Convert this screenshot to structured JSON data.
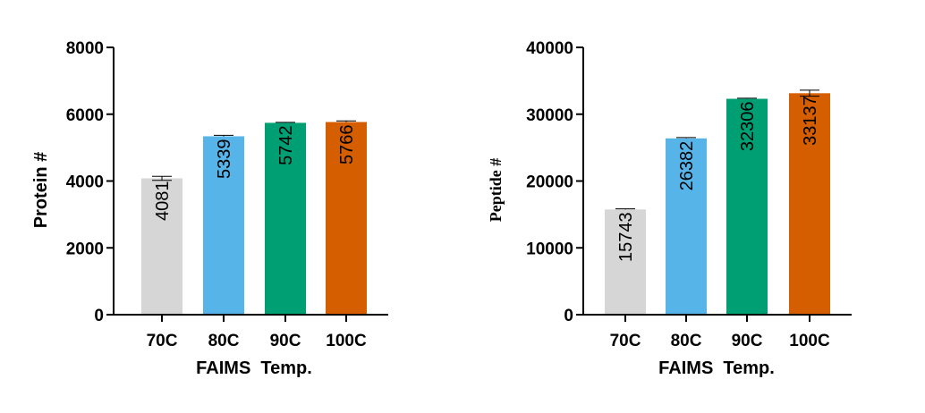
{
  "chart_data": [
    {
      "type": "bar",
      "categories": [
        "70C",
        "80C",
        "90C",
        "100C"
      ],
      "values": [
        4081,
        5339,
        5742,
        5766
      ],
      "errors": [
        60,
        30,
        15,
        35
      ],
      "data_labels": [
        "4081",
        "5339",
        "5742",
        "5766"
      ],
      "colors": [
        "#d6d6d6",
        "#56b4e9",
        "#009e73",
        "#d55e00"
      ],
      "xlabel": "FAIMS  Temp.",
      "ylabel": "Protein #",
      "ylim": [
        0,
        8000
      ],
      "yticks": [
        0,
        2000,
        4000,
        6000,
        8000
      ],
      "ytick_labels": [
        "0",
        "2000",
        "4000",
        "6000",
        "8000"
      ],
      "grid": false
    },
    {
      "type": "bar",
      "categories": [
        "70C",
        "80C",
        "90C",
        "100C"
      ],
      "values": [
        15743,
        26382,
        32306,
        33137
      ],
      "errors": [
        100,
        120,
        80,
        450
      ],
      "data_labels": [
        "15743",
        "26382",
        "32306",
        "33137"
      ],
      "colors": [
        "#d6d6d6",
        "#56b4e9",
        "#009e73",
        "#d55e00"
      ],
      "xlabel": "FAIMS  Temp.",
      "ylabel": "Peptide #",
      "ylim": [
        0,
        40000
      ],
      "yticks": [
        0,
        10000,
        20000,
        30000,
        40000
      ],
      "ytick_labels": [
        "0",
        "10000",
        "20000",
        "30000",
        "40000"
      ],
      "grid": false
    }
  ]
}
